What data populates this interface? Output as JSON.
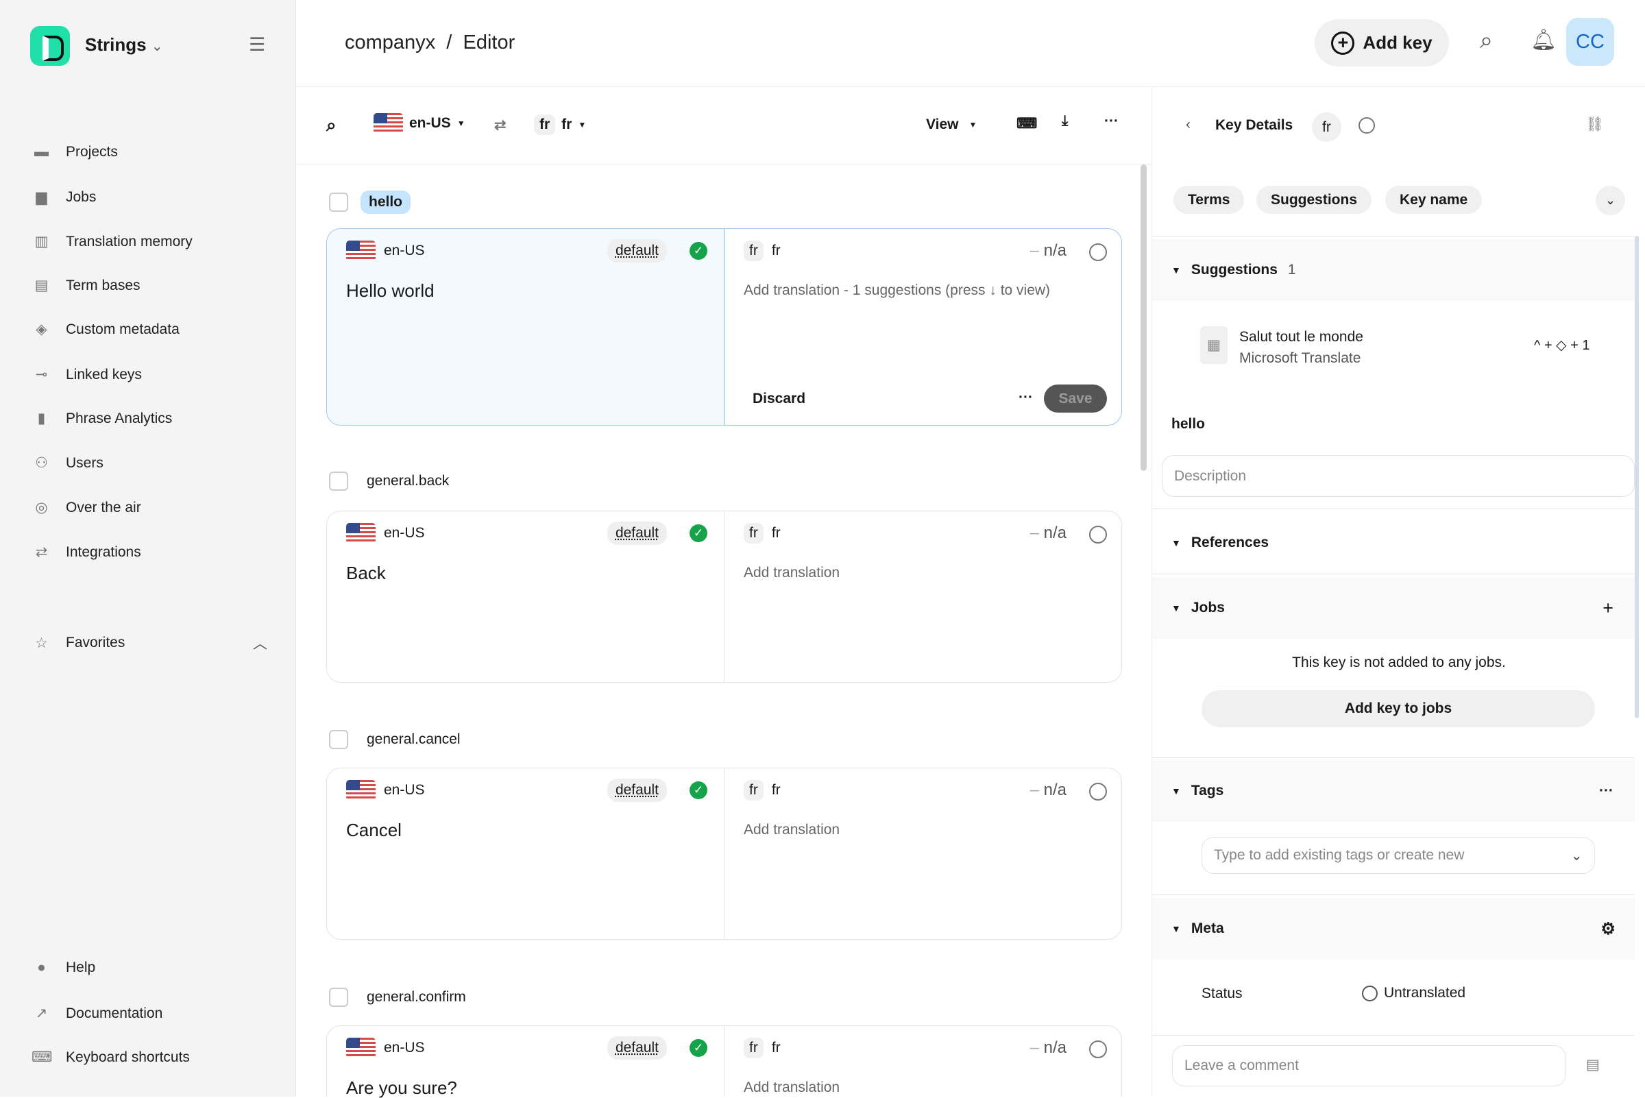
{
  "app": {
    "name": "Strings"
  },
  "sidebar": {
    "items": [
      {
        "label": "Projects",
        "icon": "folder-icon"
      },
      {
        "label": "Jobs",
        "icon": "briefcase-icon"
      },
      {
        "label": "Translation memory",
        "icon": "book-icon"
      },
      {
        "label": "Term bases",
        "icon": "term-bases-icon"
      },
      {
        "label": "Custom metadata",
        "icon": "layers-icon"
      },
      {
        "label": "Linked keys",
        "icon": "key-icon"
      },
      {
        "label": "Phrase Analytics",
        "icon": "bar-chart-icon"
      },
      {
        "label": "Users",
        "icon": "users-icon"
      },
      {
        "label": "Over the air",
        "icon": "broadcast-icon"
      },
      {
        "label": "Integrations",
        "icon": "arrows-icon"
      }
    ],
    "favorites": "Favorites",
    "bottom": [
      {
        "label": "Help",
        "icon": "help-icon"
      },
      {
        "label": "Documentation",
        "icon": "external-link-icon"
      },
      {
        "label": "Keyboard shortcuts",
        "icon": "keyboard-icon"
      }
    ]
  },
  "header": {
    "project": "companyx",
    "separator": "/",
    "page": "Editor",
    "add_key": "Add key",
    "avatar": "CC"
  },
  "toolbar": {
    "source_lang": "en-US",
    "target_code": "fr",
    "target_lang": "fr",
    "view": "View"
  },
  "keys": [
    {
      "name": "hello",
      "source_lang": "en-US",
      "default": "default",
      "source": "Hello world",
      "target_code": "fr",
      "target_lang": "fr",
      "na": "n/a",
      "target": "Add translation - 1 suggestions (press ↓ to view)",
      "active": true,
      "discard": "Discard",
      "save": "Save"
    },
    {
      "name": "general.back",
      "source_lang": "en-US",
      "default": "default",
      "source": "Back",
      "target_code": "fr",
      "target_lang": "fr",
      "na": "n/a",
      "target": "Add translation"
    },
    {
      "name": "general.cancel",
      "source_lang": "en-US",
      "default": "default",
      "source": "Cancel",
      "target_code": "fr",
      "target_lang": "fr",
      "na": "n/a",
      "target": "Add translation"
    },
    {
      "name": "general.confirm",
      "source_lang": "en-US",
      "default": "default",
      "source": "Are you sure?",
      "target_code": "fr",
      "target_lang": "fr",
      "na": "n/a",
      "target": "Add translation"
    }
  ],
  "panel": {
    "title": "Key Details",
    "lang": "fr",
    "tabs": [
      "Terms",
      "Suggestions",
      "Key name"
    ],
    "suggestions": {
      "title": "Suggestions",
      "count": "1",
      "text": "Salut tout le monde",
      "provider": "Microsoft Translate",
      "shortcut": "^ + ◇ + 1"
    },
    "key_name": "hello",
    "description_placeholder": "Description",
    "references": "References",
    "jobs": {
      "title": "Jobs",
      "empty": "This key is not added to any jobs.",
      "button": "Add key to jobs"
    },
    "tags": {
      "title": "Tags",
      "placeholder": "Type to add existing tags or create new"
    },
    "meta": {
      "title": "Meta",
      "status_label": "Status",
      "status": "Untranslated"
    },
    "comment_placeholder": "Leave a comment"
  },
  "colors": {
    "brand": "#1ee0a8",
    "selection": "#c5e4fd",
    "check": "#16a34a"
  }
}
